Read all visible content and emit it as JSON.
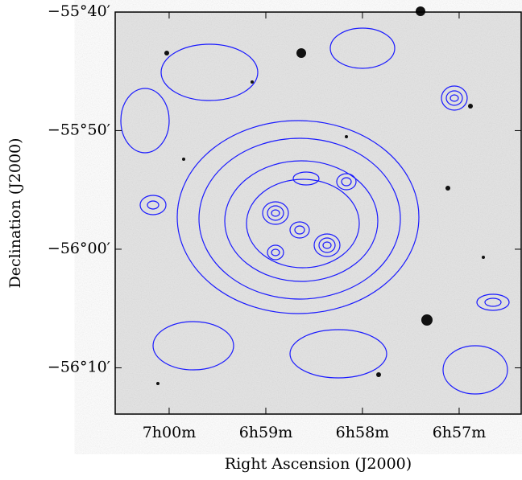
{
  "chart_data": {
    "type": "image",
    "xlabel": "Right Ascension (J2000)",
    "ylabel": "Declination (J2000)",
    "xlim": [
      7.0093,
      6.9393
    ],
    "xticks": [
      {
        "value": 7.0,
        "label": "7h00m"
      },
      {
        "value": 6.98333,
        "label": "6h59m"
      },
      {
        "value": 6.96667,
        "label": "6h58m"
      },
      {
        "value": 6.95,
        "label": "6h57m"
      }
    ],
    "ylim": [
      -56.2317,
      -55.6667
    ],
    "yticks": [
      {
        "value": -55.6667,
        "label": "−55°40′"
      },
      {
        "value": -55.8333,
        "label": "−55°50′"
      },
      {
        "value": -56.0,
        "label": "−56°00′"
      },
      {
        "value": -56.1667,
        "label": "−56°10′"
      }
    ],
    "color": "#1a1aff"
  }
}
